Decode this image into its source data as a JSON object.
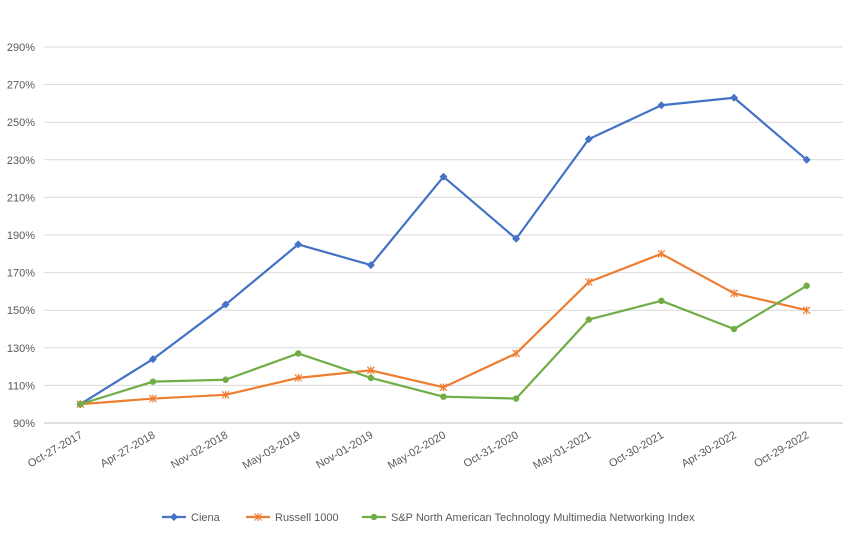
{
  "chart_data": {
    "type": "line",
    "title": "",
    "xlabel": "",
    "ylabel": "",
    "categories": [
      "Oct-27-2017",
      "Apr-27-2018",
      "Nov-02-2018",
      "May-03-2019",
      "Nov-01-2019",
      "May-02-2020",
      "Oct-31-2020",
      "May-01-2021",
      "Oct-30-2021",
      "Apr-30-2022",
      "Oct-29-2022"
    ],
    "ylim": [
      90,
      290
    ],
    "yticks": [
      "90%",
      "110%",
      "130%",
      "150%",
      "170%",
      "190%",
      "210%",
      "230%",
      "250%",
      "270%",
      "290%"
    ],
    "grid": "horizontal",
    "legend_position": "bottom",
    "series": [
      {
        "name": "Ciena",
        "color": "#4472C4",
        "marker": "diamond",
        "values": [
          100,
          124,
          153,
          185,
          174,
          221,
          188,
          241,
          259,
          263,
          230
        ]
      },
      {
        "name": "Russell 1000",
        "color": "#ED7D31",
        "marker": "star",
        "values": [
          100,
          103,
          105,
          114,
          118,
          109,
          127,
          165,
          180,
          159,
          150
        ]
      },
      {
        "name": "S&P North American Technology Multimedia Networking Index",
        "color": "#70AD47",
        "marker": "circle",
        "values": [
          100,
          112,
          113,
          127,
          114,
          104,
          103,
          145,
          155,
          140,
          163
        ]
      }
    ]
  }
}
